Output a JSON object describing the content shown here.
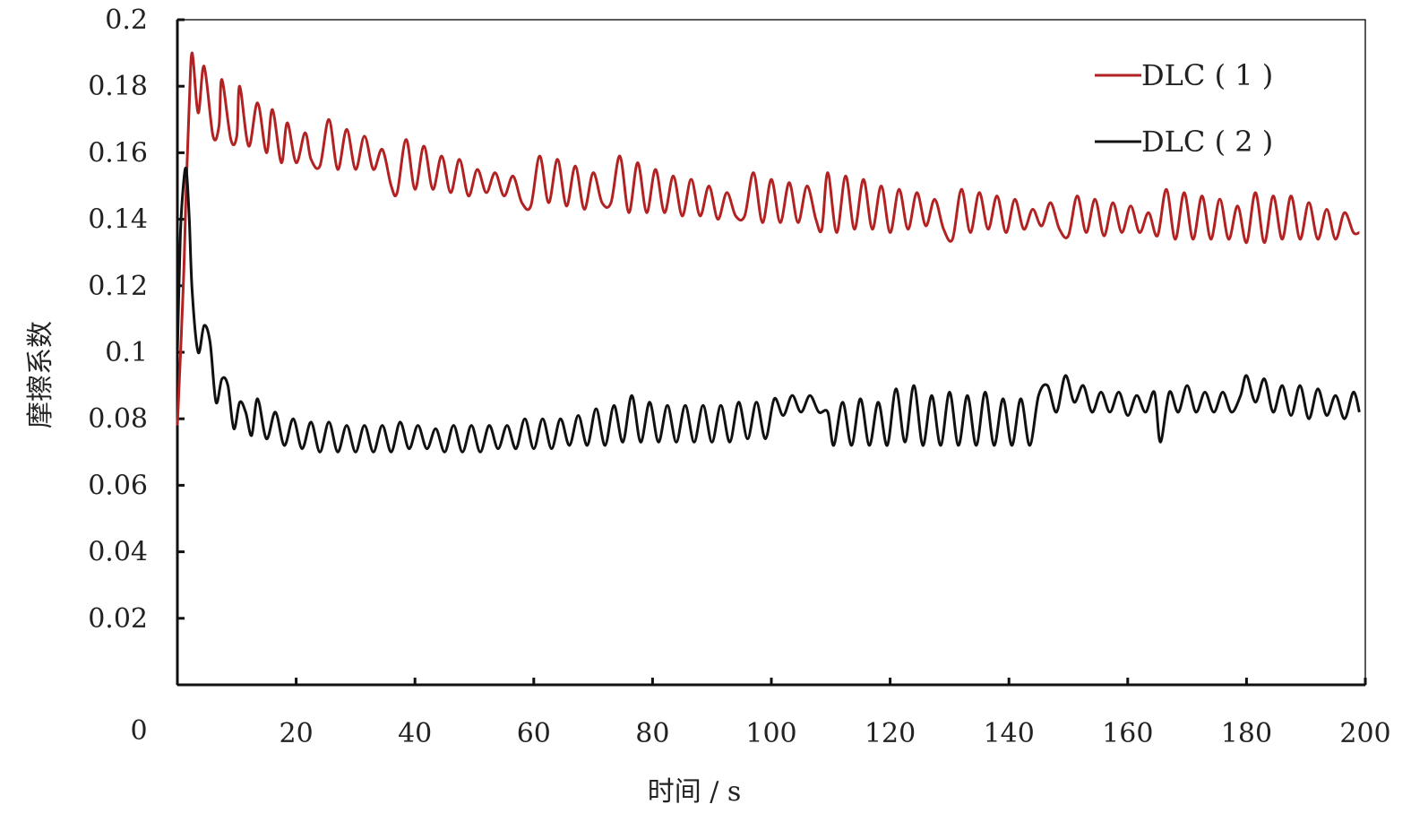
{
  "chart_data": {
    "type": "line",
    "title": "",
    "xlabel": "时间 / s",
    "ylabel": "摩擦系数",
    "xlim": [
      0,
      200
    ],
    "ylim": [
      0,
      0.2
    ],
    "x_ticks": [
      "20",
      "40",
      "60",
      "80",
      "100",
      "120",
      "140",
      "160",
      "180",
      "200"
    ],
    "x_tick_values": [
      20,
      40,
      60,
      80,
      100,
      120,
      140,
      160,
      180,
      200
    ],
    "x_origin_label": "0",
    "y_ticks": [
      "0.02",
      "0.04",
      "0.06",
      "0.08",
      "0.1",
      "0.12",
      "0.14",
      "0.16",
      "0.18",
      "0.2"
    ],
    "y_tick_values": [
      0.02,
      0.04,
      0.06,
      0.08,
      0.1,
      0.12,
      0.14,
      0.16,
      0.18,
      0.2
    ],
    "grid": false,
    "legend_position": "top-right",
    "series": [
      {
        "name": "DLC ( 1 )",
        "color": "#b22222",
        "points": [
          [
            0,
            0.078
          ],
          [
            1,
            0.12
          ],
          [
            1.5,
            0.15
          ],
          [
            2,
            0.175
          ],
          [
            2.5,
            0.19
          ],
          [
            3.5,
            0.172
          ],
          [
            4.5,
            0.186
          ],
          [
            6,
            0.165
          ],
          [
            7,
            0.168
          ],
          [
            7.5,
            0.182
          ],
          [
            9,
            0.164
          ],
          [
            10,
            0.165
          ],
          [
            10.5,
            0.18
          ],
          [
            12,
            0.162
          ],
          [
            13.5,
            0.175
          ],
          [
            15,
            0.16
          ],
          [
            16,
            0.173
          ],
          [
            17.5,
            0.157
          ],
          [
            18.5,
            0.169
          ],
          [
            20,
            0.157
          ],
          [
            21.5,
            0.166
          ],
          [
            22.5,
            0.158
          ],
          [
            24,
            0.156
          ],
          [
            25.5,
            0.17
          ],
          [
            27,
            0.155
          ],
          [
            28.5,
            0.167
          ],
          [
            30,
            0.155
          ],
          [
            31.5,
            0.165
          ],
          [
            33,
            0.155
          ],
          [
            34.5,
            0.161
          ],
          [
            36,
            0.15
          ],
          [
            37,
            0.148
          ],
          [
            38.5,
            0.164
          ],
          [
            40,
            0.149
          ],
          [
            41.5,
            0.162
          ],
          [
            43,
            0.149
          ],
          [
            44.5,
            0.159
          ],
          [
            46,
            0.148
          ],
          [
            47.5,
            0.158
          ],
          [
            49,
            0.147
          ],
          [
            50.5,
            0.155
          ],
          [
            52,
            0.148
          ],
          [
            53.5,
            0.154
          ],
          [
            55,
            0.147
          ],
          [
            56.5,
            0.153
          ],
          [
            58,
            0.145
          ],
          [
            59.5,
            0.144
          ],
          [
            61,
            0.159
          ],
          [
            62.5,
            0.145
          ],
          [
            64,
            0.158
          ],
          [
            65.5,
            0.144
          ],
          [
            67,
            0.156
          ],
          [
            68.5,
            0.143
          ],
          [
            70,
            0.154
          ],
          [
            71.5,
            0.145
          ],
          [
            73,
            0.145
          ],
          [
            74.5,
            0.159
          ],
          [
            76,
            0.142
          ],
          [
            77.5,
            0.157
          ],
          [
            79,
            0.142
          ],
          [
            80.5,
            0.155
          ],
          [
            82,
            0.142
          ],
          [
            83.5,
            0.153
          ],
          [
            85,
            0.141
          ],
          [
            86.5,
            0.152
          ],
          [
            88,
            0.141
          ],
          [
            89.5,
            0.15
          ],
          [
            91,
            0.14
          ],
          [
            92.5,
            0.148
          ],
          [
            94,
            0.141
          ],
          [
            95.5,
            0.141
          ],
          [
            97,
            0.154
          ],
          [
            98.5,
            0.139
          ],
          [
            100,
            0.152
          ],
          [
            101.5,
            0.139
          ],
          [
            103,
            0.151
          ],
          [
            104.5,
            0.139
          ],
          [
            106,
            0.15
          ],
          [
            107.5,
            0.14
          ],
          [
            108.5,
            0.137
          ],
          [
            109.5,
            0.154
          ],
          [
            111,
            0.136
          ],
          [
            112.5,
            0.153
          ],
          [
            114,
            0.137
          ],
          [
            115.5,
            0.152
          ],
          [
            117,
            0.137
          ],
          [
            118.5,
            0.15
          ],
          [
            120,
            0.136
          ],
          [
            121.5,
            0.149
          ],
          [
            123,
            0.137
          ],
          [
            124.5,
            0.148
          ],
          [
            126,
            0.138
          ],
          [
            127.5,
            0.146
          ],
          [
            129,
            0.137
          ],
          [
            130.5,
            0.134
          ],
          [
            132,
            0.149
          ],
          [
            133.5,
            0.136
          ],
          [
            135,
            0.148
          ],
          [
            136.5,
            0.137
          ],
          [
            138,
            0.147
          ],
          [
            139.5,
            0.136
          ],
          [
            141,
            0.146
          ],
          [
            142.5,
            0.137
          ],
          [
            144,
            0.143
          ],
          [
            145.5,
            0.138
          ],
          [
            147,
            0.145
          ],
          [
            148.5,
            0.137
          ],
          [
            150,
            0.135
          ],
          [
            151.5,
            0.147
          ],
          [
            153,
            0.136
          ],
          [
            154.5,
            0.146
          ],
          [
            156,
            0.135
          ],
          [
            157.5,
            0.145
          ],
          [
            159,
            0.136
          ],
          [
            160.5,
            0.144
          ],
          [
            162,
            0.136
          ],
          [
            163.5,
            0.142
          ],
          [
            165,
            0.135
          ],
          [
            166.5,
            0.149
          ],
          [
            168,
            0.134
          ],
          [
            169.5,
            0.148
          ],
          [
            171,
            0.134
          ],
          [
            172.5,
            0.147
          ],
          [
            174,
            0.134
          ],
          [
            175.5,
            0.146
          ],
          [
            177,
            0.134
          ],
          [
            178.5,
            0.144
          ],
          [
            180,
            0.133
          ],
          [
            181.5,
            0.148
          ],
          [
            183,
            0.133
          ],
          [
            184.5,
            0.147
          ],
          [
            186,
            0.134
          ],
          [
            187.5,
            0.147
          ],
          [
            189,
            0.134
          ],
          [
            190.5,
            0.145
          ],
          [
            192,
            0.134
          ],
          [
            193.5,
            0.143
          ],
          [
            195,
            0.134
          ],
          [
            196.5,
            0.142
          ],
          [
            198,
            0.136
          ],
          [
            199,
            0.136
          ]
        ]
      },
      {
        "name": "DLC ( 2 )",
        "color": "#111111",
        "points": [
          [
            0,
            0.1
          ],
          [
            0.5,
            0.135
          ],
          [
            1,
            0.15
          ],
          [
            1.5,
            0.155
          ],
          [
            2,
            0.14
          ],
          [
            2.5,
            0.118
          ],
          [
            3.5,
            0.1
          ],
          [
            4.5,
            0.108
          ],
          [
            5.5,
            0.103
          ],
          [
            6.5,
            0.085
          ],
          [
            7.5,
            0.092
          ],
          [
            8.5,
            0.09
          ],
          [
            9.5,
            0.077
          ],
          [
            10.5,
            0.085
          ],
          [
            11.5,
            0.082
          ],
          [
            12.5,
            0.075
          ],
          [
            13.5,
            0.086
          ],
          [
            15,
            0.074
          ],
          [
            16.5,
            0.082
          ],
          [
            18,
            0.072
          ],
          [
            19.5,
            0.08
          ],
          [
            21,
            0.071
          ],
          [
            22.5,
            0.079
          ],
          [
            24,
            0.07
          ],
          [
            25.5,
            0.079
          ],
          [
            27,
            0.07
          ],
          [
            28.5,
            0.078
          ],
          [
            30,
            0.07
          ],
          [
            31.5,
            0.078
          ],
          [
            33,
            0.07
          ],
          [
            34.5,
            0.078
          ],
          [
            36,
            0.07
          ],
          [
            37.5,
            0.079
          ],
          [
            39,
            0.071
          ],
          [
            40.5,
            0.078
          ],
          [
            42,
            0.071
          ],
          [
            43.5,
            0.077
          ],
          [
            45,
            0.07
          ],
          [
            46.5,
            0.078
          ],
          [
            48,
            0.07
          ],
          [
            49.5,
            0.078
          ],
          [
            51,
            0.07
          ],
          [
            52.5,
            0.078
          ],
          [
            54,
            0.071
          ],
          [
            55.5,
            0.078
          ],
          [
            57,
            0.071
          ],
          [
            58.5,
            0.08
          ],
          [
            60,
            0.071
          ],
          [
            61.5,
            0.08
          ],
          [
            63,
            0.071
          ],
          [
            64.5,
            0.08
          ],
          [
            66,
            0.072
          ],
          [
            67.5,
            0.081
          ],
          [
            69,
            0.072
          ],
          [
            70.5,
            0.083
          ],
          [
            72,
            0.072
          ],
          [
            73.5,
            0.084
          ],
          [
            75,
            0.073
          ],
          [
            76.5,
            0.087
          ],
          [
            78,
            0.073
          ],
          [
            79.5,
            0.085
          ],
          [
            81,
            0.073
          ],
          [
            82.5,
            0.084
          ],
          [
            84,
            0.073
          ],
          [
            85.5,
            0.084
          ],
          [
            87,
            0.073
          ],
          [
            88.5,
            0.084
          ],
          [
            90,
            0.073
          ],
          [
            91.5,
            0.084
          ],
          [
            93,
            0.073
          ],
          [
            94.5,
            0.085
          ],
          [
            96,
            0.074
          ],
          [
            97.5,
            0.085
          ],
          [
            99,
            0.074
          ],
          [
            100.5,
            0.086
          ],
          [
            102,
            0.081
          ],
          [
            103.5,
            0.087
          ],
          [
            105,
            0.082
          ],
          [
            106.5,
            0.087
          ],
          [
            108,
            0.082
          ],
          [
            109.5,
            0.082
          ],
          [
            110.5,
            0.072
          ],
          [
            112,
            0.085
          ],
          [
            113.5,
            0.072
          ],
          [
            115,
            0.086
          ],
          [
            116.5,
            0.072
          ],
          [
            118,
            0.085
          ],
          [
            119.5,
            0.072
          ],
          [
            121,
            0.089
          ],
          [
            122.5,
            0.073
          ],
          [
            124,
            0.09
          ],
          [
            125.5,
            0.072
          ],
          [
            127,
            0.087
          ],
          [
            128.5,
            0.072
          ],
          [
            130,
            0.088
          ],
          [
            131.5,
            0.072
          ],
          [
            133,
            0.087
          ],
          [
            134.5,
            0.072
          ],
          [
            136,
            0.088
          ],
          [
            137.5,
            0.072
          ],
          [
            139,
            0.086
          ],
          [
            140.5,
            0.072
          ],
          [
            142,
            0.086
          ],
          [
            143.5,
            0.072
          ],
          [
            145,
            0.087
          ],
          [
            146.5,
            0.09
          ],
          [
            148,
            0.082
          ],
          [
            149.5,
            0.093
          ],
          [
            151,
            0.085
          ],
          [
            152.5,
            0.09
          ],
          [
            154,
            0.082
          ],
          [
            155.5,
            0.088
          ],
          [
            157,
            0.082
          ],
          [
            158.5,
            0.088
          ],
          [
            160,
            0.081
          ],
          [
            161.5,
            0.087
          ],
          [
            163,
            0.082
          ],
          [
            164.5,
            0.088
          ],
          [
            165.5,
            0.073
          ],
          [
            167,
            0.088
          ],
          [
            168.5,
            0.082
          ],
          [
            170,
            0.09
          ],
          [
            171.5,
            0.082
          ],
          [
            173,
            0.088
          ],
          [
            174.5,
            0.082
          ],
          [
            176,
            0.088
          ],
          [
            177.5,
            0.082
          ],
          [
            179,
            0.087
          ],
          [
            180,
            0.093
          ],
          [
            181.5,
            0.085
          ],
          [
            183,
            0.092
          ],
          [
            184.5,
            0.082
          ],
          [
            186,
            0.09
          ],
          [
            187.5,
            0.081
          ],
          [
            189,
            0.09
          ],
          [
            190.5,
            0.08
          ],
          [
            192,
            0.089
          ],
          [
            193.5,
            0.081
          ],
          [
            195,
            0.087
          ],
          [
            196.5,
            0.08
          ],
          [
            198,
            0.088
          ],
          [
            199,
            0.082
          ]
        ]
      }
    ]
  }
}
